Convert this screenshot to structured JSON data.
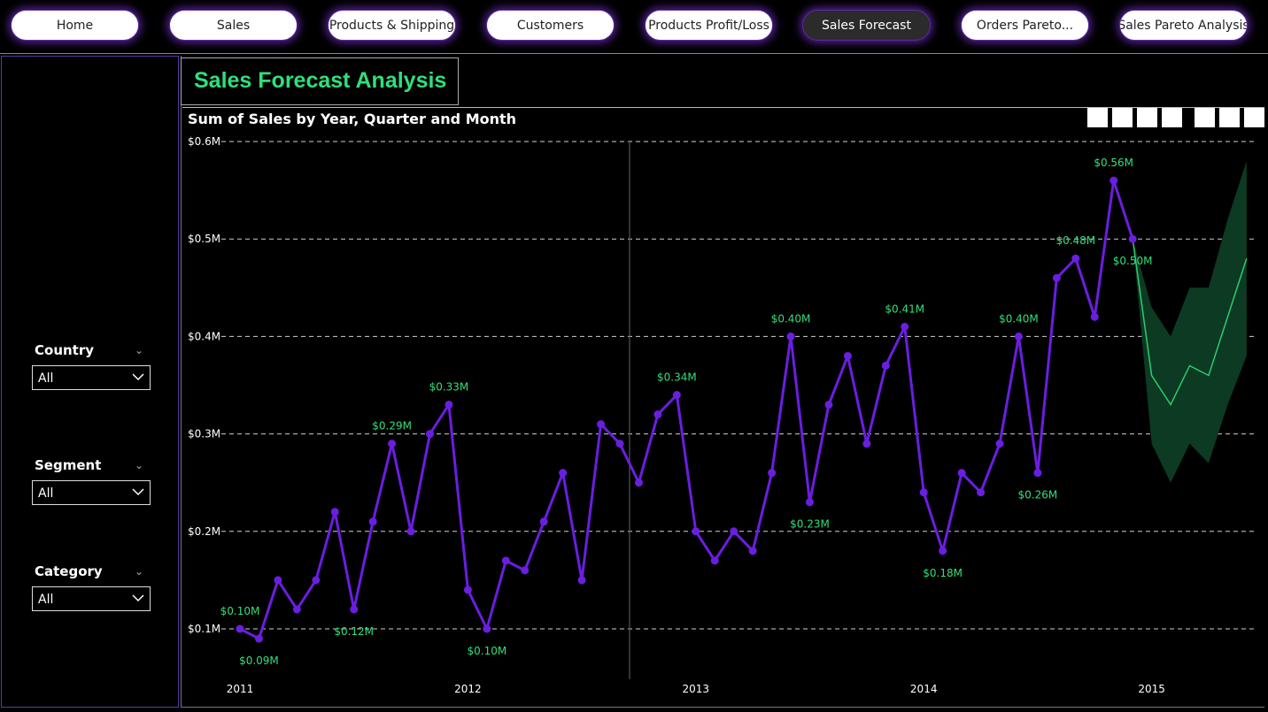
{
  "nav": {
    "tabs": [
      {
        "label": "Home"
      },
      {
        "label": "Sales"
      },
      {
        "label": "Products & Shipping"
      },
      {
        "label": "Customers"
      },
      {
        "label": "Products Profit/Loss"
      },
      {
        "label": "Sales Forecast"
      },
      {
        "label": "Orders Pareto..."
      },
      {
        "label": "Sales Pareto Analysis"
      }
    ],
    "active": "Sales Forecast"
  },
  "page_title": "Sales Forecast Analysis",
  "slicers": [
    {
      "label": "Country",
      "value": "All"
    },
    {
      "label": "Segment",
      "value": "All"
    },
    {
      "label": "Category",
      "value": "All"
    }
  ],
  "colors": {
    "accent": "#2ee07a",
    "series": "#6a1ee0",
    "forecast_line": "#2ecc71",
    "forecast_band": "#0c3a22"
  },
  "chart_data": {
    "type": "line",
    "title": "Sum of Sales by Year, Quarter and Month",
    "xlabel": "",
    "ylabel": "",
    "ylim": [
      0.1,
      0.6
    ],
    "y_ticks": [
      "$0.1M",
      "$0.2M",
      "$0.3M",
      "$0.4M",
      "$0.5M",
      "$0.6M"
    ],
    "x_ticks": [
      "2011",
      "2012",
      "2013",
      "2014",
      "2015"
    ],
    "grid": true,
    "series": [
      {
        "name": "",
        "start": "2011-01",
        "values": [
          0.1,
          0.09,
          0.15,
          0.12,
          0.15,
          0.22,
          0.12,
          0.21,
          0.29,
          0.2,
          0.3,
          0.33,
          0.14,
          0.1,
          0.17,
          0.16,
          0.21,
          0.26,
          0.15,
          0.31,
          0.29,
          0.25,
          0.32,
          0.34,
          0.2,
          0.17,
          0.2,
          0.18,
          0.26,
          0.4,
          0.23,
          0.33,
          0.38,
          0.29,
          0.37,
          0.41,
          0.24,
          0.18,
          0.26,
          0.24,
          0.29,
          0.4,
          0.26,
          0.46,
          0.48,
          0.42,
          0.56,
          0.5
        ]
      }
    ],
    "data_labels": [
      {
        "month": "2011-01",
        "text": "$0.10M",
        "pos": "above"
      },
      {
        "month": "2011-02",
        "text": "$0.09M",
        "pos": "below"
      },
      {
        "month": "2011-07",
        "text": "$0.12M",
        "pos": "below"
      },
      {
        "month": "2011-09",
        "text": "$0.29M",
        "pos": "above"
      },
      {
        "month": "2011-12",
        "text": "$0.33M",
        "pos": "above"
      },
      {
        "month": "2012-02",
        "text": "$0.10M",
        "pos": "below"
      },
      {
        "month": "2012-12",
        "text": "$0.34M",
        "pos": "above"
      },
      {
        "month": "2013-06",
        "text": "$0.40M",
        "pos": "above"
      },
      {
        "month": "2013-07",
        "text": "$0.23M",
        "pos": "below"
      },
      {
        "month": "2013-12",
        "text": "$0.41M",
        "pos": "above"
      },
      {
        "month": "2014-02",
        "text": "$0.18M",
        "pos": "below"
      },
      {
        "month": "2014-06",
        "text": "$0.40M",
        "pos": "above"
      },
      {
        "month": "2014-07",
        "text": "$0.26M",
        "pos": "below"
      },
      {
        "month": "2014-09",
        "text": "$0.48M",
        "pos": "above"
      },
      {
        "month": "2014-11",
        "text": "$0.56M",
        "pos": "above"
      },
      {
        "month": "2014-12",
        "text": "$0.50M",
        "pos": "below"
      }
    ],
    "forecast": {
      "start": "2014-12",
      "values": [
        0.5,
        0.36,
        0.33,
        0.37,
        0.36,
        0.42,
        0.48
      ],
      "upper": [
        0.5,
        0.43,
        0.4,
        0.45,
        0.45,
        0.52,
        0.58
      ],
      "lower": [
        0.5,
        0.29,
        0.25,
        0.29,
        0.27,
        0.33,
        0.38
      ]
    },
    "reference_line_month": "2012-09"
  }
}
